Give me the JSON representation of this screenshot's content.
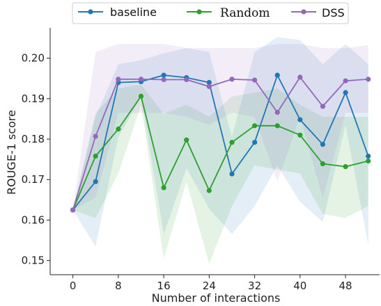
{
  "chart_data": {
    "type": "line",
    "xlabel": "Number of interactions",
    "ylabel": "ROUGE-1 score",
    "xlim": [
      -4,
      54
    ],
    "ylim": [
      0.1465,
      0.2075
    ],
    "xticks": [
      0,
      8,
      16,
      24,
      32,
      40,
      48
    ],
    "xtick_labels": [
      "0",
      "8",
      "16",
      "24",
      "32",
      "40",
      "48"
    ],
    "yticks": [
      0.15,
      0.16,
      0.17,
      0.18,
      0.19,
      0.2
    ],
    "ytick_labels": [
      "0.15",
      "0.16",
      "0.17",
      "0.18",
      "0.19",
      "0.20"
    ],
    "legend_placement": "top",
    "x": [
      0,
      4,
      8,
      12,
      16,
      20,
      24,
      28,
      32,
      36,
      40,
      44,
      48,
      52
    ],
    "series": [
      {
        "name": "baseline",
        "color": "#1f77b4",
        "values": [
          0.1625,
          0.1695,
          0.194,
          0.1942,
          0.1958,
          0.1952,
          0.194,
          0.1714,
          0.1792,
          0.1958,
          0.1848,
          0.1787,
          0.1915,
          0.1758
        ],
        "band_low": [
          0.1625,
          0.1535,
          0.1805,
          0.1905,
          0.1565,
          0.1728,
          0.1628,
          0.1565,
          0.1635,
          0.1735,
          0.1645,
          0.1595,
          0.1835,
          0.1538
        ],
        "band_high": [
          0.1625,
          0.1855,
          0.1985,
          0.1995,
          0.2012,
          0.2025,
          0.2015,
          0.1805,
          0.2015,
          0.2052,
          0.2045,
          0.1985,
          0.2035,
          0.1985
        ]
      },
      {
        "name": "Random",
        "color": "#2ca02c",
        "values": [
          0.1625,
          0.1758,
          0.1825,
          0.1906,
          0.168,
          0.1798,
          0.1673,
          0.1792,
          0.1833,
          0.1833,
          0.181,
          0.1739,
          0.1732,
          0.1746
        ],
        "band_low": [
          0.1625,
          0.1605,
          0.1715,
          0.1885,
          0.1505,
          0.1695,
          0.1492,
          0.1635,
          0.1735,
          0.1725,
          0.1715,
          0.1615,
          0.1605,
          0.1635
        ],
        "band_high": [
          0.1625,
          0.1865,
          0.1925,
          0.1935,
          0.1862,
          0.1885,
          0.1855,
          0.1905,
          0.1915,
          0.1925,
          0.1885,
          0.1855,
          0.1855,
          0.1855
        ]
      },
      {
        "name": "DSS",
        "color": "#9467bd",
        "values": [
          0.1625,
          0.1807,
          0.1948,
          0.1948,
          0.1947,
          0.1947,
          0.193,
          0.1948,
          0.1946,
          0.1866,
          0.1953,
          0.1881,
          0.1944,
          0.1948
        ],
        "band_low": [
          0.1625,
          0.1655,
          0.1865,
          0.1865,
          0.1865,
          0.1855,
          0.1835,
          0.1865,
          0.1855,
          0.1695,
          0.1855,
          0.1655,
          0.1865,
          0.1865
        ],
        "band_high": [
          0.1625,
          0.2015,
          0.2035,
          0.2035,
          0.2035,
          0.2025,
          0.2025,
          0.2025,
          0.2025,
          0.2035,
          0.2035,
          0.2025,
          0.2025,
          0.2032
        ]
      }
    ]
  }
}
